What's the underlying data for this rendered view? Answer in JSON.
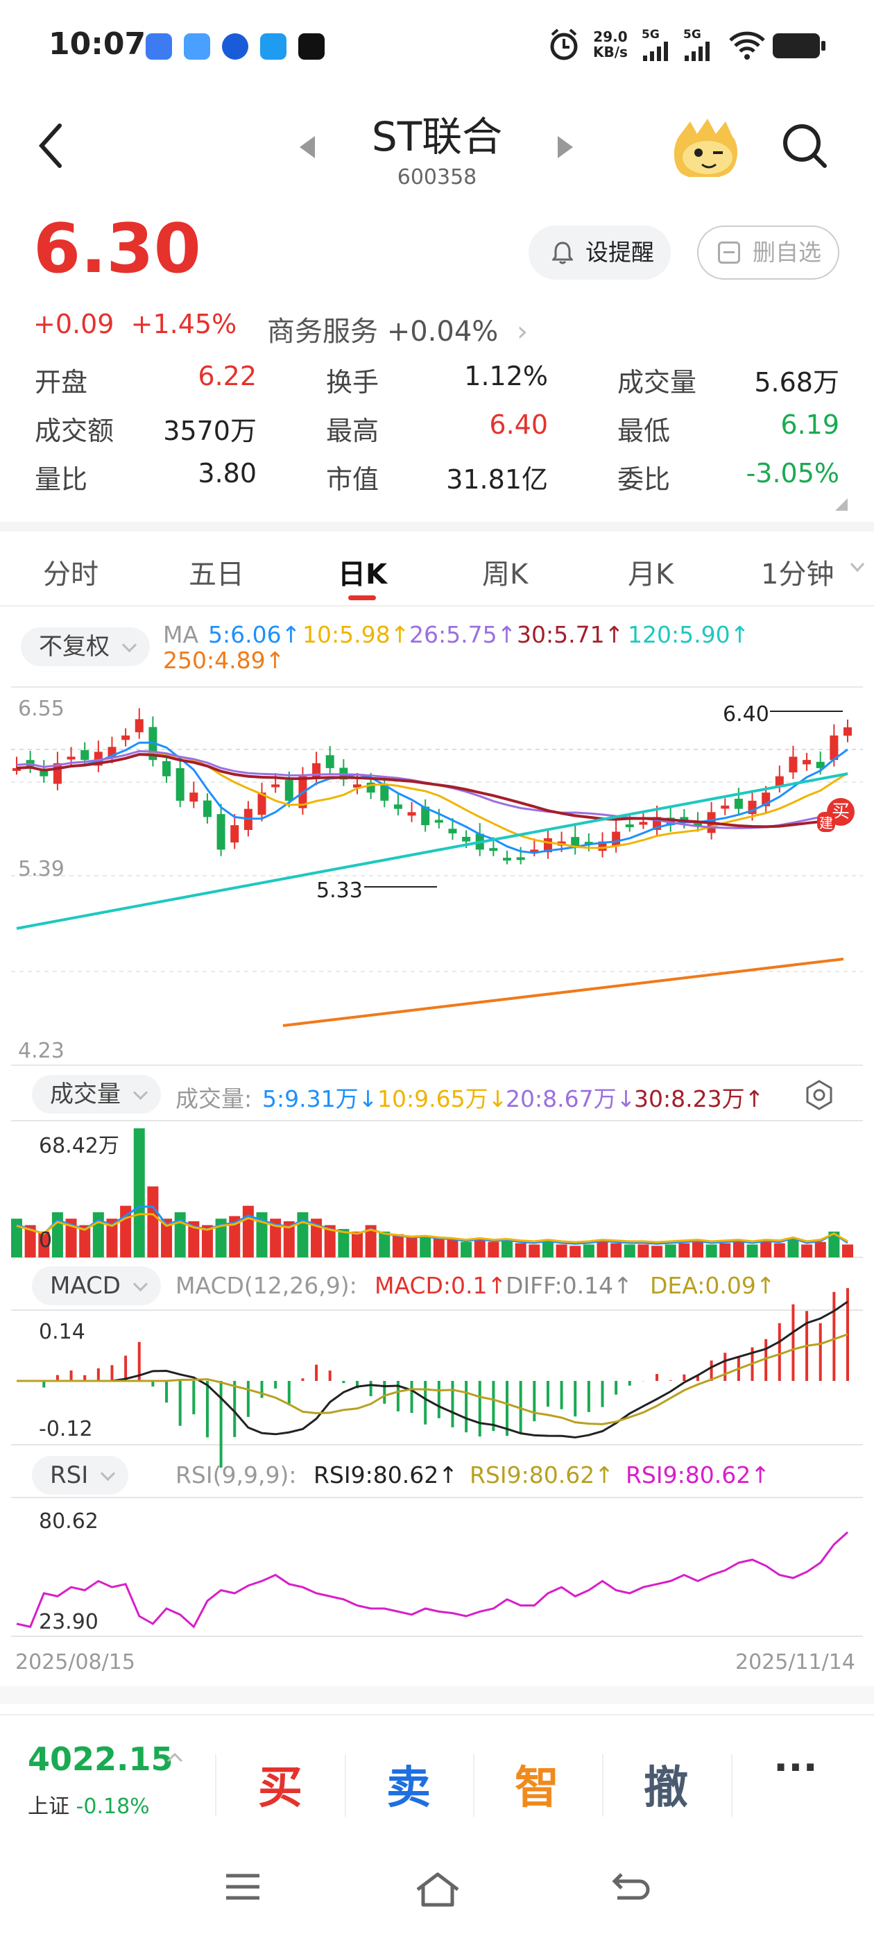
{
  "status_bar": {
    "time": "10:07",
    "net_speed_value": "29.0",
    "net_speed_unit": "KB/s",
    "sig1": "5G",
    "sig2": "5G"
  },
  "header": {
    "title": "ST联合",
    "code": "600358"
  },
  "quote": {
    "price": "6.30",
    "change": "+0.09",
    "change_pct": "+1.45%",
    "industry_name": "商务服务",
    "industry_change": "+0.04%",
    "remind_label": "设提醒",
    "delete_fav_label": "删自选",
    "stats": [
      {
        "label": "开盘",
        "value": "6.22",
        "color": "red"
      },
      {
        "label": "换手",
        "value": "1.12%",
        "color": "black"
      },
      {
        "label": "成交量",
        "value": "5.68万",
        "color": "black"
      },
      {
        "label": "成交额",
        "value": "3570万",
        "color": "black"
      },
      {
        "label": "最高",
        "value": "6.40",
        "color": "red"
      },
      {
        "label": "最低",
        "value": "6.19",
        "color": "green"
      },
      {
        "label": "量比",
        "value": "3.80",
        "color": "black"
      },
      {
        "label": "市值",
        "value": "31.81亿",
        "color": "black"
      },
      {
        "label": "委比",
        "value": "-3.05%",
        "color": "green"
      }
    ]
  },
  "tabs": [
    "分时",
    "五日",
    "日K",
    "周K",
    "月K",
    "1分钟"
  ],
  "active_tab": "日K",
  "kline": {
    "adjust_label": "不复权",
    "ma_prefix": "MA",
    "ma": [
      {
        "label": "5:6.06↑",
        "color": "#1e90ff"
      },
      {
        "label": "10:5.98↑",
        "color": "#f0b400"
      },
      {
        "label": "26:5.75↑",
        "color": "#9b6fe0"
      },
      {
        "label": "30:5.71↑",
        "color": "#a31f2a"
      },
      {
        "label": "120:5.90↑",
        "color": "#1ec8c0"
      },
      {
        "label": "250:4.89↑",
        "color": "#f07a1a"
      }
    ],
    "y_top": "6.55",
    "y_mid": "5.39",
    "y_bottom": "4.23",
    "high_mark": "6.40",
    "low_mark": "5.33",
    "buy_tag": "买",
    "build_tag": "建"
  },
  "volume": {
    "pill": "成交量",
    "prefix": "成交量:",
    "items": [
      {
        "label": "5:9.31万↓",
        "color": "#1e90ff"
      },
      {
        "label": "10:9.65万↓",
        "color": "#f0b400"
      },
      {
        "label": "20:8.67万↓",
        "color": "#9b6fe0"
      },
      {
        "label": "30:8.23万↑",
        "color": "#a31f2a"
      }
    ],
    "max_label": "68.42万",
    "zero_label": "0"
  },
  "macd": {
    "pill": "MACD",
    "prefix": "MACD(12,26,9):",
    "items": [
      {
        "label": "MACD:0.1↑",
        "color": "#e5322d"
      },
      {
        "label": "DIFF:0.14↑",
        "color": "#888888"
      },
      {
        "label": "DEA:0.09↑",
        "color": "#b8a020"
      }
    ],
    "y_top": "0.14",
    "y_bottom": "-0.12"
  },
  "rsi": {
    "pill": "RSI",
    "prefix": "RSI(9,9,9):",
    "items": [
      {
        "label": "RSI9:80.62↑",
        "color": "#222222"
      },
      {
        "label": "RSI9:80.62↑",
        "color": "#b8a020"
      },
      {
        "label": "RSI9:80.62↑",
        "color": "#d81ec8"
      }
    ],
    "y_top": "80.62",
    "y_bottom": "23.90",
    "date_start": "2025/08/15",
    "date_end": "2025/11/14"
  },
  "bottom_bar": {
    "index_value": "4022.15",
    "index_name": "上证",
    "index_change": "-0.18%",
    "buy": "买",
    "sell": "卖",
    "smart": "智",
    "cancel": "撤",
    "more": "···"
  }
}
